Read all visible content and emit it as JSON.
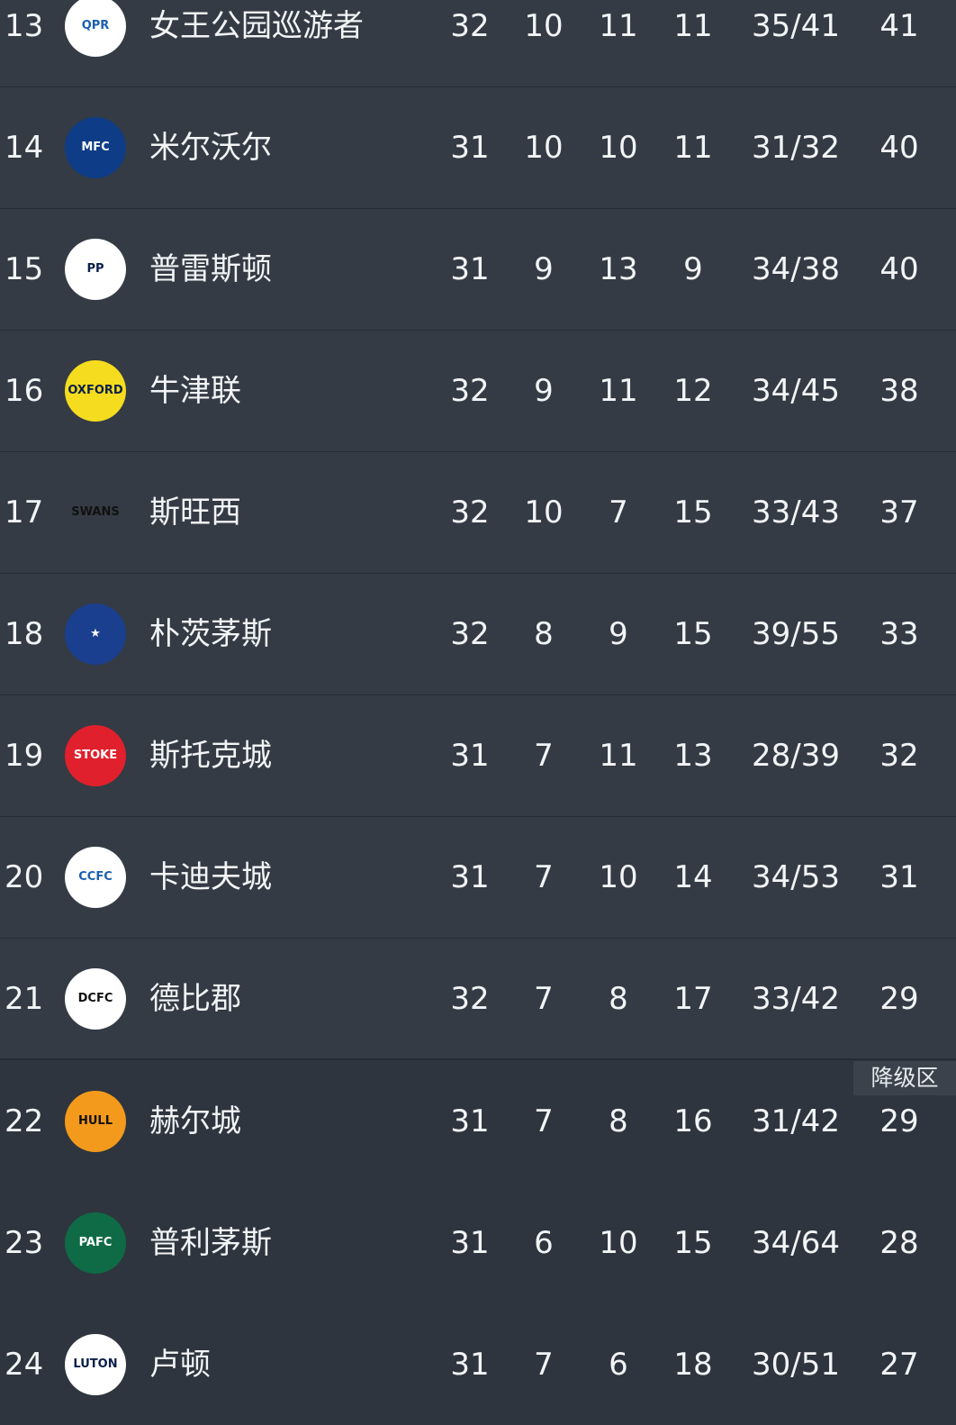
{
  "relegation_label": "降级区",
  "rows": [
    {
      "rank": "13",
      "crest": "qpr-crest",
      "name": "女王公园巡游者",
      "p": "32",
      "w": "10",
      "d": "11",
      "l": "11",
      "g": "35/41",
      "pts": "41",
      "crest_color": "#ffffff",
      "crest_fg": "#1b5fae",
      "crest_text": "QPR"
    },
    {
      "rank": "14",
      "crest": "millwall-crest",
      "name": "米尔沃尔",
      "p": "31",
      "w": "10",
      "d": "10",
      "l": "11",
      "g": "31/32",
      "pts": "40",
      "crest_color": "#0e3c86",
      "crest_fg": "#ffffff",
      "crest_text": "MFC"
    },
    {
      "rank": "15",
      "crest": "preston-crest",
      "name": "普雷斯顿",
      "p": "31",
      "w": "9",
      "d": "13",
      "l": "9",
      "g": "34/38",
      "pts": "40",
      "crest_color": "#ffffff",
      "crest_fg": "#0b1f4a",
      "crest_text": "PP"
    },
    {
      "rank": "16",
      "crest": "oxford-crest",
      "name": "牛津联",
      "p": "32",
      "w": "9",
      "d": "11",
      "l": "12",
      "g": "34/45",
      "pts": "38",
      "crest_color": "#f5dc1e",
      "crest_fg": "#0b1f4a",
      "crest_text": "OXFORD"
    },
    {
      "rank": "17",
      "crest": "swansea-crest",
      "name": "斯旺西",
      "p": "32",
      "w": "10",
      "d": "7",
      "l": "15",
      "g": "33/43",
      "pts": "37",
      "crest_color": "#343b44",
      "crest_fg": "#111111",
      "crest_text": "SWANS"
    },
    {
      "rank": "18",
      "crest": "portsmouth-crest",
      "name": "朴茨茅斯",
      "p": "32",
      "w": "8",
      "d": "9",
      "l": "15",
      "g": "39/55",
      "pts": "33",
      "crest_color": "#1b3f8f",
      "crest_fg": "#ffffff",
      "crest_text": "★"
    },
    {
      "rank": "19",
      "crest": "stoke-crest",
      "name": "斯托克城",
      "p": "31",
      "w": "7",
      "d": "11",
      "l": "13",
      "g": "28/39",
      "pts": "32",
      "crest_color": "#e0202c",
      "crest_fg": "#ffffff",
      "crest_text": "STOKE"
    },
    {
      "rank": "20",
      "crest": "cardiff-crest",
      "name": "卡迪夫城",
      "p": "31",
      "w": "7",
      "d": "10",
      "l": "14",
      "g": "34/53",
      "pts": "31",
      "crest_color": "#ffffff",
      "crest_fg": "#1b5fae",
      "crest_text": "CCFC"
    },
    {
      "rank": "21",
      "crest": "derby-crest",
      "name": "德比郡",
      "p": "32",
      "w": "7",
      "d": "8",
      "l": "17",
      "g": "33/42",
      "pts": "29",
      "crest_color": "#ffffff",
      "crest_fg": "#111111",
      "crest_text": "DCFC"
    },
    {
      "rank": "22",
      "crest": "hull-crest",
      "name": "赫尔城",
      "p": "31",
      "w": "7",
      "d": "8",
      "l": "16",
      "g": "31/42",
      "pts": "29",
      "crest_color": "#f39a1d",
      "crest_fg": "#111111",
      "crest_text": "HULL"
    },
    {
      "rank": "23",
      "crest": "plymouth-crest",
      "name": "普利茅斯",
      "p": "31",
      "w": "6",
      "d": "10",
      "l": "15",
      "g": "34/64",
      "pts": "28",
      "crest_color": "#0f6b45",
      "crest_fg": "#ffffff",
      "crest_text": "PAFC"
    },
    {
      "rank": "24",
      "crest": "luton-crest",
      "name": "卢顿",
      "p": "31",
      "w": "7",
      "d": "6",
      "l": "18",
      "g": "30/51",
      "pts": "27",
      "crest_color": "#ffffff",
      "crest_fg": "#0b1f4a",
      "crest_text": "LUTON"
    }
  ]
}
